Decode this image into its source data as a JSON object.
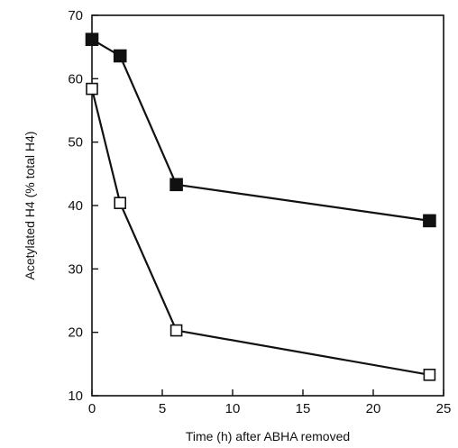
{
  "chart_data": {
    "type": "line",
    "xlabel": "Time (h) after ABHA removed",
    "ylabel": "Acetylated H4 (% total H4)",
    "xlim": [
      0,
      25
    ],
    "ylim": [
      10,
      70
    ],
    "x_ticks": [
      0,
      5,
      10,
      15,
      20,
      25
    ],
    "y_ticks": [
      10,
      20,
      30,
      40,
      50,
      60,
      70
    ],
    "grid": false,
    "legend": "none",
    "series": [
      {
        "marker": "filled-square",
        "color": "#111111",
        "x": [
          0,
          2,
          6,
          24
        ],
        "y": [
          66.2,
          63.6,
          43.3,
          37.6
        ]
      },
      {
        "marker": "open-square",
        "color": "#111111",
        "x": [
          0,
          2,
          6,
          24
        ],
        "y": [
          58.4,
          40.4,
          20.3,
          13.3
        ]
      }
    ]
  }
}
